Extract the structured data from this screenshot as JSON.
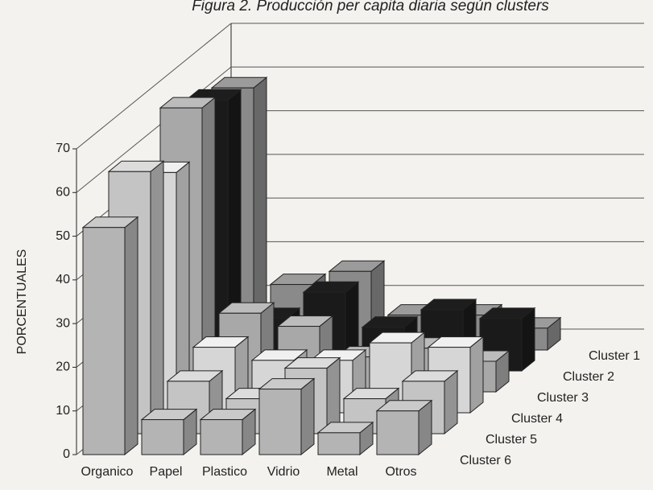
{
  "chart_data": {
    "type": "bar3d",
    "title": "Figura 2. Producción per capita diaria según clusters",
    "y_label": "PORCENTUALES",
    "categories": [
      "Organico",
      "Papel",
      "Plastico",
      "Vidrio",
      "Metal",
      "Otros"
    ],
    "ylim": [
      0,
      70
    ],
    "yticks": [
      0,
      10,
      20,
      30,
      40,
      50,
      60,
      70
    ],
    "grid": true,
    "series": [
      {
        "name": "Cluster 1",
        "color": "#8a8a8a",
        "values": [
          60,
          15,
          18,
          8,
          8,
          5
        ]
      },
      {
        "name": "Cluster 2",
        "color": "#1a1a1a",
        "values": [
          62,
          12,
          18,
          10,
          14,
          12
        ]
      },
      {
        "name": "Cluster 3",
        "color": "#a8a8a8",
        "values": [
          65,
          18,
          15,
          8,
          10,
          7
        ]
      },
      {
        "name": "Cluster 4",
        "color": "#d6d6d6",
        "values": [
          55,
          15,
          12,
          12,
          16,
          15
        ]
      },
      {
        "name": "Cluster 5",
        "color": "#c4c4c4",
        "values": [
          60,
          12,
          8,
          15,
          8,
          12
        ]
      },
      {
        "name": "Cluster 6",
        "color": "#b4b4b4",
        "values": [
          52,
          8,
          8,
          15,
          5,
          10
        ]
      }
    ]
  }
}
